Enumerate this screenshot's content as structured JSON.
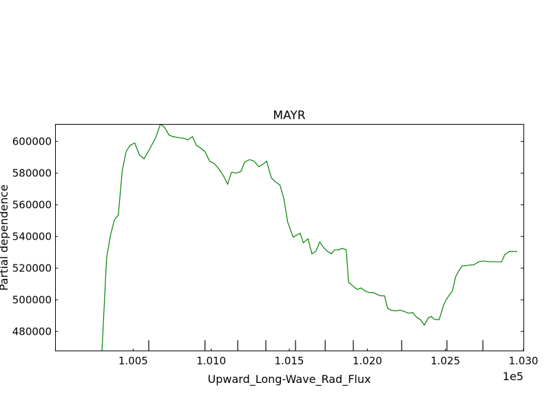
{
  "chart_data": {
    "type": "line",
    "title": "MAYR",
    "xlabel": "Upward_Long-Wave_Rad_Flux",
    "ylabel": "Partial dependence",
    "x_offset_label": "1e5",
    "xlim": [
      100000,
      103000
    ],
    "ylim": [
      467500,
      611000
    ],
    "x_ticks": [
      100500,
      101000,
      101500,
      102000,
      102500,
      103000
    ],
    "x_tick_labels": [
      "1.005",
      "1.010",
      "1.015",
      "1.020",
      "1.025",
      "1.030"
    ],
    "y_ticks": [
      480000,
      500000,
      520000,
      540000,
      560000,
      580000,
      600000
    ],
    "y_tick_labels": [
      "480000",
      "500000",
      "520000",
      "540000",
      "560000",
      "580000",
      "600000"
    ],
    "rug_x": [
      100600,
      100960,
      101170,
      101350,
      101540,
      101730,
      101910,
      102220,
      102510,
      102740
    ],
    "series": [
      {
        "name": "",
        "color": "#008000",
        "x": [
          100300,
          100330,
          100355,
          100380,
          100405,
          100430,
          100455,
          100480,
          100510,
          100540,
          100570,
          100610,
          100645,
          100675,
          100700,
          100730,
          100755,
          100785,
          100820,
          100850,
          100880,
          100905,
          100930,
          100960,
          100990,
          101020,
          101050,
          101080,
          101105,
          101130,
          101160,
          101190,
          101215,
          101245,
          101275,
          101305,
          101330,
          101355,
          101385,
          101410,
          101440,
          101465,
          101490,
          101525,
          101550,
          101570,
          101590,
          101620,
          101645,
          101670,
          101695,
          101720,
          101745,
          101770,
          101790,
          101815,
          101840,
          101865,
          101880,
          101905,
          101935,
          101960,
          101985,
          102015,
          102040,
          102060,
          102085,
          102110,
          102130,
          102150,
          102180,
          102210,
          102240,
          102265,
          102290,
          102315,
          102340,
          102365,
          102390,
          102410,
          102425,
          102440,
          102460,
          102490,
          102505,
          102525,
          102545,
          102565,
          102590,
          102610,
          102630,
          102660,
          102680,
          102715,
          102740,
          102790,
          102825,
          102860,
          102880,
          102910,
          102935,
          102960
        ],
        "y": [
          467500,
          526500,
          541000,
          550500,
          553500,
          581500,
          593500,
          597500,
          599000,
          591500,
          589000,
          596000,
          602500,
          611000,
          609000,
          604000,
          603000,
          602500,
          602000,
          601000,
          603000,
          597500,
          596000,
          593500,
          587500,
          586000,
          582500,
          578000,
          573000,
          580500,
          580000,
          581000,
          587000,
          588500,
          587500,
          584000,
          585500,
          587500,
          577000,
          574500,
          572500,
          564000,
          549000,
          539500,
          541000,
          542000,
          536000,
          538500,
          529000,
          530500,
          536500,
          533000,
          530500,
          529000,
          531500,
          531500,
          532500,
          531500,
          511000,
          509000,
          506500,
          507500,
          505500,
          504500,
          504500,
          503500,
          502500,
          502500,
          494500,
          493500,
          493000,
          493500,
          492500,
          491500,
          492000,
          489000,
          487500,
          484000,
          488500,
          489500,
          488000,
          487500,
          487500,
          497000,
          500000,
          503000,
          505500,
          514500,
          519000,
          521500,
          521500,
          522000,
          522000,
          524000,
          524500,
          524000,
          524000,
          524000,
          528500,
          530500,
          530500,
          530500
        ]
      }
    ]
  }
}
